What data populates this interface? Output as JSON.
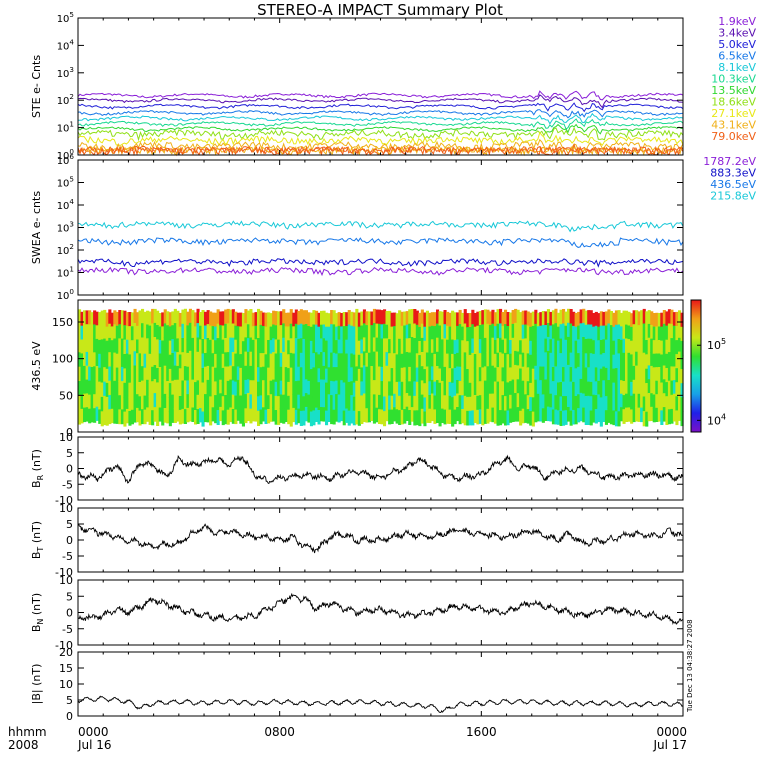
{
  "title": "STEREO-A IMPACT Summary Plot",
  "stamp": "Tue Dec 13 04:38:27 2008",
  "time_axis": {
    "corner": [
      "hhmm",
      "2008"
    ],
    "ticks": [
      {
        "label": "0000",
        "sublabel": "Jul 16",
        "hour": 0
      },
      {
        "label": "0800",
        "sublabel": "",
        "hour": 8
      },
      {
        "label": "1600",
        "sublabel": "",
        "hour": 16
      },
      {
        "label": "0000",
        "sublabel": "Jul 17",
        "hour": 24
      }
    ]
  },
  "colors": {
    "ste": [
      "#8a1fd8",
      "#5a10b0",
      "#2020d8",
      "#1878e8",
      "#18c8d8",
      "#18d890",
      "#30d830",
      "#90e018",
      "#e8e818",
      "#f0b018",
      "#f06018",
      "#d81818"
    ],
    "swea": [
      "#8a1fd8",
      "#1010c8",
      "#1878e8",
      "#18c8d8"
    ],
    "colorbar": [
      "#7a10c8",
      "#2020e8",
      "#18a0e8",
      "#18e0c8",
      "#30e030",
      "#c8e818",
      "#f0a018",
      "#e81818"
    ]
  },
  "chart_data": [
    {
      "type": "line",
      "id": "ste",
      "ylabel": "STE e- Cnts",
      "yscale": "log",
      "ylim": [
        1,
        100000
      ],
      "yticks": [
        {
          "value": 1,
          "base": "10",
          "exp": "0"
        },
        {
          "value": 10,
          "base": "10",
          "exp": "1"
        },
        {
          "value": 100,
          "base": "10",
          "exp": "2"
        },
        {
          "value": 1000,
          "base": "10",
          "exp": "3"
        },
        {
          "value": 10000,
          "base": "10",
          "exp": "4"
        },
        {
          "value": 100000,
          "base": "10",
          "exp": "5"
        }
      ],
      "series": [
        {
          "name": "1.9keV",
          "level": 150
        },
        {
          "name": "3.4keV",
          "level": 100
        },
        {
          "name": "5.0keV",
          "level": 60
        },
        {
          "name": "6.5keV",
          "level": 35
        },
        {
          "name": "8.1keV",
          "level": 22
        },
        {
          "name": "10.3keV",
          "level": 14
        },
        {
          "name": "13.5keV",
          "level": 9
        },
        {
          "name": "18.6keV",
          "level": 6
        },
        {
          "name": "27.1keV",
          "level": 3.5
        },
        {
          "name": "43.1keV",
          "level": 2.2
        },
        {
          "name": "79.0keV",
          "level": 1.5
        }
      ]
    },
    {
      "type": "line",
      "id": "swea",
      "ylabel": "SWEA e- cnts",
      "yscale": "log",
      "ylim": [
        1,
        1000000
      ],
      "yticks": [
        {
          "value": 1,
          "base": "10",
          "exp": "0"
        },
        {
          "value": 10,
          "base": "10",
          "exp": "1"
        },
        {
          "value": 100,
          "base": "10",
          "exp": "2"
        },
        {
          "value": 1000,
          "base": "10",
          "exp": "3"
        },
        {
          "value": 10000,
          "base": "10",
          "exp": "4"
        },
        {
          "value": 100000,
          "base": "10",
          "exp": "5"
        },
        {
          "value": 1000000,
          "base": "10",
          "exp": "6"
        }
      ],
      "series": [
        {
          "name": "1787.2eV",
          "level": 12
        },
        {
          "name": "883.3eV",
          "level": 30
        },
        {
          "name": "436.5eV",
          "level": 250
        },
        {
          "name": "215.8eV",
          "level": 1400
        }
      ]
    },
    {
      "type": "heatmap",
      "id": "pad",
      "ylabel": "436.5 eV",
      "ylim": [
        0,
        180
      ],
      "yticks": [
        0,
        50,
        100,
        150
      ],
      "colorbar_ticks": [
        {
          "value": 10000,
          "base": "10",
          "exp": "4"
        },
        {
          "value": 100000,
          "base": "10",
          "exp": "5"
        }
      ]
    },
    {
      "type": "line",
      "id": "br",
      "ylabel_main": "B",
      "ylabel_sub": "R",
      "ylabel_unit": " (nT)",
      "ylim": [
        -10,
        10
      ],
      "yticks": [
        -10,
        -5,
        0,
        5,
        10
      ],
      "nodes": [
        [
          0,
          -2
        ],
        [
          0.8,
          -3
        ],
        [
          1.5,
          1
        ],
        [
          2,
          -4
        ],
        [
          2.5,
          2
        ],
        [
          3,
          1
        ],
        [
          3.5,
          -3
        ],
        [
          4,
          3
        ],
        [
          4.5,
          1
        ],
        [
          5,
          2
        ],
        [
          5.5,
          3
        ],
        [
          6,
          1
        ],
        [
          6.5,
          4
        ],
        [
          7,
          -2
        ],
        [
          7.5,
          -4
        ],
        [
          8,
          -3
        ],
        [
          9,
          -2
        ],
        [
          10,
          -3
        ],
        [
          11,
          -1
        ],
        [
          11.5,
          -2
        ],
        [
          12,
          -3
        ],
        [
          12.5,
          -1
        ],
        [
          13,
          0
        ],
        [
          13.5,
          3
        ],
        [
          14,
          1
        ],
        [
          14.5,
          -2
        ],
        [
          15,
          -3
        ],
        [
          16,
          -2
        ],
        [
          16.5,
          1
        ],
        [
          17,
          3
        ],
        [
          17.5,
          0
        ],
        [
          18,
          1
        ],
        [
          18.5,
          -3
        ],
        [
          19,
          -1
        ],
        [
          20,
          0
        ],
        [
          21,
          -3
        ],
        [
          22,
          -2
        ],
        [
          23,
          -2
        ],
        [
          24,
          -3
        ]
      ]
    },
    {
      "type": "line",
      "id": "bt",
      "ylabel_main": "B",
      "ylabel_sub": "T",
      "ylabel_unit": " (nT)",
      "ylim": [
        -10,
        10
      ],
      "yticks": [
        -10,
        -5,
        0,
        5,
        10
      ],
      "nodes": [
        [
          0,
          4
        ],
        [
          1,
          2
        ],
        [
          2,
          0
        ],
        [
          3,
          -2
        ],
        [
          4,
          -1
        ],
        [
          4.5,
          2
        ],
        [
          5,
          4
        ],
        [
          5.5,
          2
        ],
        [
          6,
          3
        ],
        [
          7,
          1
        ],
        [
          7.5,
          1
        ],
        [
          8,
          0
        ],
        [
          8.5,
          1
        ],
        [
          9,
          -2
        ],
        [
          9.5,
          -3
        ],
        [
          10,
          1
        ],
        [
          10.5,
          2
        ],
        [
          11,
          0
        ],
        [
          12,
          0
        ],
        [
          13,
          2
        ],
        [
          14,
          1
        ],
        [
          15,
          3
        ],
        [
          16,
          2
        ],
        [
          17,
          1
        ],
        [
          18,
          3
        ],
        [
          19,
          0
        ],
        [
          19.5,
          2
        ],
        [
          20,
          -1
        ],
        [
          21,
          0
        ],
        [
          22,
          2
        ],
        [
          23,
          1
        ],
        [
          23.5,
          3
        ],
        [
          24,
          1
        ]
      ]
    },
    {
      "type": "line",
      "id": "bn",
      "ylabel_main": "B",
      "ylabel_sub": "N",
      "ylabel_unit": " (nT)",
      "ylim": [
        -10,
        10
      ],
      "yticks": [
        -10,
        -5,
        0,
        5,
        10
      ],
      "nodes": [
        [
          0,
          -2
        ],
        [
          1,
          -1
        ],
        [
          1.5,
          1
        ],
        [
          2,
          0
        ],
        [
          3,
          4
        ],
        [
          4,
          1
        ],
        [
          5,
          -1
        ],
        [
          6,
          -2
        ],
        [
          7,
          -1
        ],
        [
          7.5,
          1
        ],
        [
          8,
          3
        ],
        [
          8.5,
          5
        ],
        [
          9,
          4
        ],
        [
          9.5,
          1
        ],
        [
          10,
          3
        ],
        [
          11,
          0
        ],
        [
          12,
          1
        ],
        [
          13,
          -1
        ],
        [
          14,
          0
        ],
        [
          15,
          2
        ],
        [
          16,
          1
        ],
        [
          17,
          0
        ],
        [
          17.5,
          2
        ],
        [
          18,
          3
        ],
        [
          19,
          1
        ],
        [
          20,
          -1
        ],
        [
          21,
          1
        ],
        [
          22,
          0
        ],
        [
          23,
          -1
        ],
        [
          24,
          -3
        ]
      ]
    },
    {
      "type": "line",
      "id": "bmag",
      "ylabel_main": "|B|",
      "ylabel_sub": "",
      "ylabel_unit": " (nT)",
      "ylim": [
        0,
        20
      ],
      "yticks": [
        0,
        5,
        10,
        15,
        20
      ],
      "nodes": [
        [
          0,
          5
        ],
        [
          1,
          5.5
        ],
        [
          2,
          4.5
        ],
        [
          2.5,
          2.5
        ],
        [
          3,
          4
        ],
        [
          4,
          4.5
        ],
        [
          5,
          4
        ],
        [
          6,
          4.5
        ],
        [
          7,
          4
        ],
        [
          8,
          4.5
        ],
        [
          9,
          4
        ],
        [
          10,
          4
        ],
        [
          11,
          4.5
        ],
        [
          12,
          4
        ],
        [
          13,
          3.5
        ],
        [
          14,
          3
        ],
        [
          14.5,
          1.5
        ],
        [
          15,
          3.5
        ],
        [
          16,
          4
        ],
        [
          17,
          4.5
        ],
        [
          18,
          4.5
        ],
        [
          19,
          4
        ],
        [
          20,
          4
        ],
        [
          21,
          4
        ],
        [
          22,
          3.5
        ],
        [
          23,
          4
        ],
        [
          24,
          3.5
        ]
      ]
    }
  ]
}
